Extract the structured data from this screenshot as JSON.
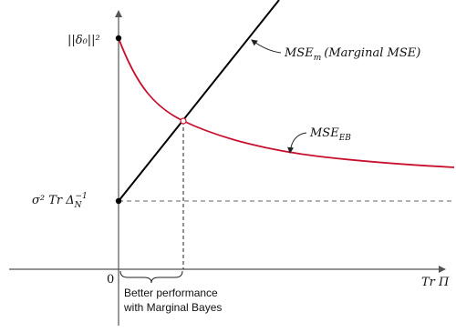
{
  "diagram": {
    "y_axis_label_top": "||δ₀||²",
    "y_axis_label_floor": "σ² Tr Δ",
    "y_axis_label_floor_sub": "N",
    "y_axis_label_floor_sup": "−1",
    "origin_label": "0",
    "x_axis_label": "Tr Π",
    "line_label_main": "MSE",
    "line_label_sub": "m",
    "line_label_paren": "(Marginal MSE)",
    "curve_label_main": "MSE",
    "curve_label_sub": "EB",
    "brace_note_line1": "Better performance",
    "brace_note_line2": "with Marginal Bayes",
    "colors": {
      "curve": "#c8102e",
      "line": "#000000",
      "axes": "#555555",
      "dashed": "#666666"
    }
  }
}
